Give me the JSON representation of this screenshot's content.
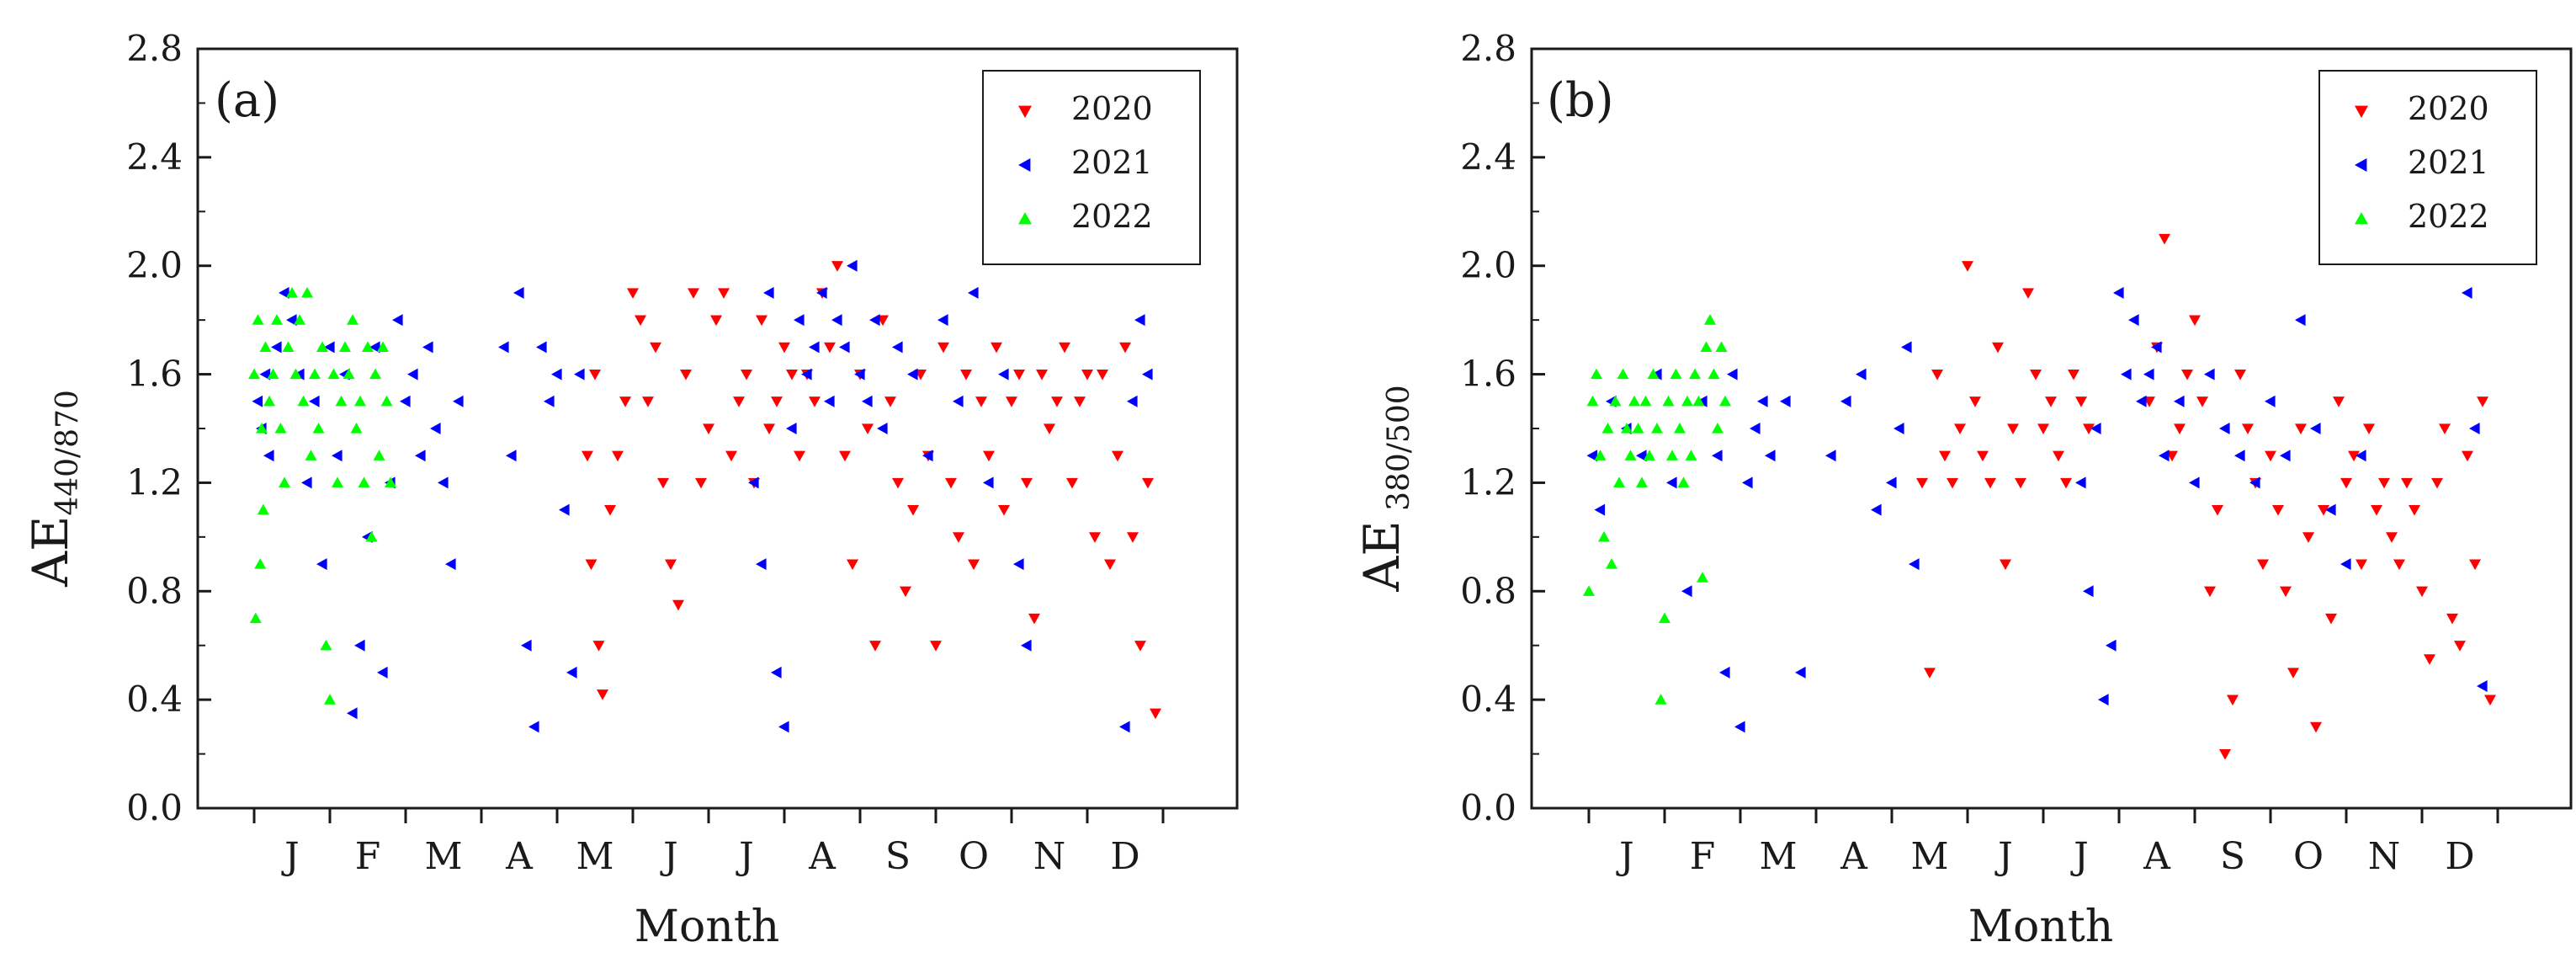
{
  "figure": {
    "panels": [
      {
        "panel_label": "(a)",
        "ylabel_main": "AE",
        "ylabel_sub": "440/870",
        "xlabel": "Month"
      },
      {
        "panel_label": "(b)",
        "ylabel_main": "AE",
        "ylabel_sub": " 380/500",
        "xlabel": "Month"
      }
    ],
    "colors": {
      "2020": "#ff0000",
      "2021": "#0000ff",
      "2022": "#00ff00",
      "axis": "#1a1a1a"
    },
    "icons": {
      "2020": "down-triangle-marker",
      "2021": "left-triangle-marker",
      "2022": "up-triangle-marker"
    }
  },
  "chart_data": [
    {
      "type": "scatter",
      "panel_label": "(a)",
      "title": "",
      "xlabel": "Month",
      "ylabel": "AE 440/870",
      "ylim": [
        0,
        2.8
      ],
      "yticks": [
        "0.0",
        "0.4",
        "0.8",
        "1.2",
        "1.6",
        "2.0",
        "2.4",
        "2.8"
      ],
      "categories": [
        "J",
        "F",
        "M",
        "A",
        "M",
        "J",
        "J",
        "A",
        "S",
        "O",
        "N",
        "D"
      ],
      "legend": [
        "2020",
        "2021",
        "2022"
      ],
      "legend_position": "top-right",
      "series": [
        {
          "name": "2020",
          "color": "#ff0000",
          "marker": "down-triangle",
          "x": [
            4.4,
            4.45,
            4.5,
            4.55,
            4.6,
            4.7,
            4.8,
            4.9,
            5.0,
            5.1,
            5.2,
            5.3,
            5.4,
            5.5,
            5.6,
            5.7,
            5.8,
            5.9,
            6.0,
            6.1,
            6.2,
            6.3,
            6.4,
            6.5,
            6.6,
            6.7,
            6.8,
            6.9,
            7.0,
            7.1,
            7.2,
            7.3,
            7.4,
            7.5,
            7.6,
            7.7,
            7.8,
            7.9,
            8.0,
            8.1,
            8.2,
            8.3,
            8.4,
            8.5,
            8.6,
            8.7,
            8.8,
            8.9,
            9.0,
            9.1,
            9.2,
            9.3,
            9.4,
            9.5,
            9.6,
            9.7,
            9.8,
            9.9,
            10.0,
            10.1,
            10.2,
            10.3,
            10.4,
            10.5,
            10.6,
            10.7,
            10.8,
            10.9,
            11.0,
            11.1,
            11.2,
            11.3,
            11.4,
            11.5,
            11.6,
            11.7,
            11.8,
            11.9
          ],
          "y": [
            1.3,
            0.9,
            1.6,
            0.6,
            0.42,
            1.1,
            1.3,
            1.5,
            1.9,
            1.8,
            1.5,
            1.7,
            1.2,
            0.9,
            0.75,
            1.6,
            1.9,
            1.2,
            1.4,
            1.8,
            1.9,
            1.3,
            1.5,
            1.6,
            1.2,
            1.8,
            1.4,
            1.5,
            1.7,
            1.6,
            1.3,
            1.6,
            1.5,
            1.9,
            1.7,
            2.0,
            1.3,
            0.9,
            1.6,
            1.4,
            0.6,
            1.8,
            1.5,
            1.2,
            0.8,
            1.1,
            1.6,
            1.3,
            0.6,
            1.7,
            1.2,
            1.0,
            1.6,
            0.9,
            1.5,
            1.3,
            1.7,
            1.1,
            1.5,
            1.6,
            1.2,
            0.7,
            1.6,
            1.4,
            1.5,
            1.7,
            1.2,
            1.5,
            1.6,
            1.0,
            1.6,
            0.9,
            1.3,
            1.7,
            1.0,
            0.6,
            1.2,
            0.35
          ]
        },
        {
          "name": "2021",
          "color": "#0000ff",
          "marker": "left-triangle",
          "x": [
            0.05,
            0.1,
            0.15,
            0.2,
            0.3,
            0.4,
            0.5,
            0.6,
            0.7,
            0.8,
            0.9,
            1.0,
            1.1,
            1.2,
            1.3,
            1.4,
            1.5,
            1.6,
            1.7,
            1.8,
            1.9,
            2.0,
            2.1,
            2.2,
            2.3,
            2.4,
            2.5,
            2.6,
            2.7,
            3.3,
            3.4,
            3.5,
            3.6,
            3.7,
            3.8,
            3.9,
            4.0,
            4.1,
            4.2,
            4.3,
            6.6,
            6.7,
            6.8,
            6.9,
            7.0,
            7.1,
            7.2,
            7.3,
            7.4,
            7.5,
            7.6,
            7.7,
            7.8,
            7.9,
            8.0,
            8.1,
            8.2,
            8.3,
            8.5,
            8.7,
            8.9,
            9.1,
            9.3,
            9.5,
            9.7,
            9.9,
            10.1,
            10.2,
            11.5,
            11.6,
            11.7,
            11.8
          ],
          "y": [
            1.5,
            1.4,
            1.6,
            1.3,
            1.7,
            1.9,
            1.8,
            1.6,
            1.2,
            1.5,
            0.9,
            1.7,
            1.3,
            1.6,
            0.35,
            0.6,
            1.0,
            1.7,
            0.5,
            1.2,
            1.8,
            1.5,
            1.6,
            1.3,
            1.7,
            1.4,
            1.2,
            0.9,
            1.5,
            1.7,
            1.3,
            1.9,
            0.6,
            0.3,
            1.7,
            1.5,
            1.6,
            1.1,
            0.5,
            1.6,
            1.2,
            0.9,
            1.9,
            0.5,
            0.3,
            1.4,
            1.8,
            1.6,
            1.7,
            1.9,
            1.5,
            1.8,
            1.7,
            2.0,
            1.6,
            1.5,
            1.8,
            1.4,
            1.7,
            1.6,
            1.3,
            1.8,
            1.5,
            1.9,
            1.2,
            1.6,
            0.9,
            0.6,
            0.3,
            1.5,
            1.8,
            1.6
          ]
        },
        {
          "name": "2022",
          "color": "#00ff00",
          "marker": "up-triangle",
          "x": [
            0.0,
            0.02,
            0.05,
            0.08,
            0.1,
            0.12,
            0.15,
            0.2,
            0.25,
            0.3,
            0.35,
            0.4,
            0.45,
            0.5,
            0.55,
            0.6,
            0.65,
            0.7,
            0.75,
            0.8,
            0.85,
            0.9,
            0.95,
            1.0,
            1.05,
            1.1,
            1.15,
            1.2,
            1.25,
            1.3,
            1.35,
            1.4,
            1.45,
            1.5,
            1.55,
            1.6,
            1.65,
            1.7,
            1.75,
            1.8
          ],
          "y": [
            1.6,
            0.7,
            1.8,
            0.9,
            1.4,
            1.1,
            1.7,
            1.5,
            1.6,
            1.8,
            1.4,
            1.2,
            1.7,
            1.9,
            1.6,
            1.8,
            1.5,
            1.9,
            1.3,
            1.6,
            1.4,
            1.7,
            0.6,
            0.4,
            1.6,
            1.2,
            1.5,
            1.7,
            1.6,
            1.8,
            1.4,
            1.5,
            1.2,
            1.7,
            1.0,
            1.6,
            1.3,
            1.7,
            1.5,
            1.2
          ]
        }
      ]
    },
    {
      "type": "scatter",
      "panel_label": "(b)",
      "title": "",
      "xlabel": "Month",
      "ylabel": "AE 380/500",
      "ylim": [
        0,
        2.8
      ],
      "yticks": [
        "0.0",
        "0.4",
        "0.8",
        "1.2",
        "1.6",
        "2.0",
        "2.4",
        "2.8"
      ],
      "categories": [
        "J",
        "F",
        "M",
        "A",
        "M",
        "J",
        "J",
        "A",
        "S",
        "O",
        "N",
        "D"
      ],
      "legend": [
        "2020",
        "2021",
        "2022"
      ],
      "legend_position": "top-right",
      "series": [
        {
          "name": "2020",
          "color": "#ff0000",
          "marker": "down-triangle",
          "x": [
            4.4,
            4.5,
            4.6,
            4.7,
            4.8,
            4.9,
            5.0,
            5.1,
            5.2,
            5.3,
            5.4,
            5.5,
            5.6,
            5.7,
            5.8,
            5.9,
            6.0,
            6.1,
            6.2,
            6.3,
            6.4,
            6.5,
            6.6,
            7.4,
            7.5,
            7.6,
            7.7,
            7.8,
            7.9,
            8.0,
            8.1,
            8.2,
            8.3,
            8.4,
            8.5,
            8.6,
            8.7,
            8.8,
            8.9,
            9.0,
            9.1,
            9.2,
            9.3,
            9.4,
            9.5,
            9.6,
            9.7,
            9.8,
            9.9,
            10.0,
            10.1,
            10.2,
            10.3,
            10.4,
            10.5,
            10.6,
            10.7,
            10.8,
            10.9,
            11.0,
            11.1,
            11.2,
            11.3,
            11.4,
            11.5,
            11.6,
            11.7,
            11.8,
            11.9
          ],
          "y": [
            1.2,
            0.5,
            1.6,
            1.3,
            1.2,
            1.4,
            2.0,
            1.5,
            1.3,
            1.2,
            1.7,
            0.9,
            1.4,
            1.2,
            1.9,
            1.6,
            1.4,
            1.5,
            1.3,
            1.2,
            1.6,
            1.5,
            1.4,
            1.5,
            1.7,
            2.1,
            1.3,
            1.4,
            1.6,
            1.8,
            1.5,
            0.8,
            1.1,
            0.2,
            0.4,
            1.6,
            1.4,
            1.2,
            0.9,
            1.3,
            1.1,
            0.8,
            0.5,
            1.4,
            1.0,
            0.3,
            1.1,
            0.7,
            1.5,
            1.2,
            1.3,
            0.9,
            1.4,
            1.1,
            1.2,
            1.0,
            0.9,
            1.2,
            1.1,
            0.8,
            0.55,
            1.2,
            1.4,
            0.7,
            0.6,
            1.3,
            0.9,
            1.5,
            0.4
          ]
        },
        {
          "name": "2021",
          "color": "#0000ff",
          "marker": "left-triangle",
          "x": [
            0.05,
            0.15,
            0.3,
            0.5,
            0.7,
            0.9,
            1.1,
            1.3,
            1.5,
            1.7,
            1.8,
            1.9,
            2.0,
            2.1,
            2.2,
            2.3,
            2.4,
            2.6,
            2.8,
            3.2,
            3.4,
            3.6,
            3.8,
            4.0,
            4.1,
            4.2,
            4.3,
            6.5,
            6.6,
            6.7,
            6.8,
            6.9,
            7.0,
            7.1,
            7.2,
            7.3,
            7.4,
            7.5,
            7.6,
            7.8,
            8.0,
            8.2,
            8.4,
            8.6,
            8.8,
            9.0,
            9.2,
            9.4,
            9.6,
            9.8,
            10.0,
            10.2,
            11.6,
            11.7,
            11.8
          ],
          "y": [
            1.3,
            1.1,
            1.5,
            1.4,
            1.3,
            1.6,
            1.2,
            0.8,
            1.5,
            1.3,
            0.5,
            1.6,
            0.3,
            1.2,
            1.4,
            1.5,
            1.3,
            1.5,
            0.5,
            1.3,
            1.5,
            1.6,
            1.1,
            1.2,
            1.4,
            1.7,
            0.9,
            1.2,
            0.8,
            1.4,
            0.4,
            0.6,
            1.9,
            1.6,
            1.8,
            1.5,
            1.6,
            1.7,
            1.3,
            1.5,
            1.2,
            1.6,
            1.4,
            1.3,
            1.2,
            1.5,
            1.3,
            1.8,
            1.4,
            1.1,
            0.9,
            1.3,
            1.9,
            1.4,
            0.45
          ]
        },
        {
          "name": "2022",
          "color": "#00ff00",
          "marker": "up-triangle",
          "x": [
            0.0,
            0.05,
            0.1,
            0.15,
            0.2,
            0.25,
            0.3,
            0.35,
            0.4,
            0.45,
            0.5,
            0.55,
            0.6,
            0.65,
            0.7,
            0.75,
            0.8,
            0.85,
            0.9,
            0.95,
            1.0,
            1.05,
            1.1,
            1.15,
            1.2,
            1.25,
            1.3,
            1.35,
            1.4,
            1.45,
            1.5,
            1.55,
            1.6,
            1.65,
            1.7,
            1.75,
            1.8
          ],
          "y": [
            0.8,
            1.5,
            1.6,
            1.3,
            1.0,
            1.4,
            0.9,
            1.5,
            1.2,
            1.6,
            1.4,
            1.3,
            1.5,
            1.4,
            1.2,
            1.5,
            1.3,
            1.6,
            1.4,
            0.4,
            0.7,
            1.5,
            1.3,
            1.6,
            1.4,
            1.2,
            1.5,
            1.3,
            1.6,
            1.5,
            0.85,
            1.7,
            1.8,
            1.6,
            1.4,
            1.7,
            1.5
          ]
        }
      ]
    }
  ]
}
